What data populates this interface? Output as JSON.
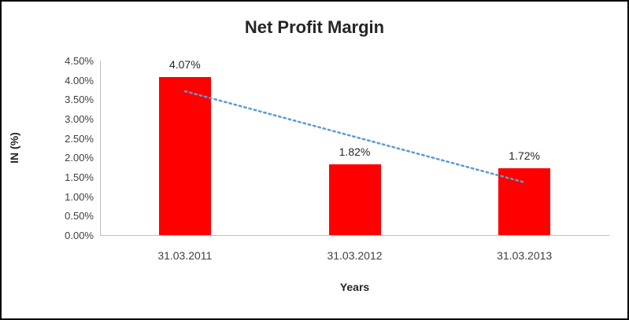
{
  "chart_data": {
    "type": "bar",
    "title": "Net Profit Margin",
    "categories": [
      "31.03.2011",
      "31.03.2012",
      "31.03.2013"
    ],
    "values": [
      4.07,
      1.82,
      1.72
    ],
    "data_labels": [
      "4.07%",
      "1.82%",
      "1.72%"
    ],
    "xlabel": "Years",
    "ylabel": "IN (%)",
    "ylim": [
      0,
      4.5
    ],
    "ytick_step": 0.5,
    "ytick_labels": [
      "0.00%",
      "0.50%",
      "1.00%",
      "1.50%",
      "2.00%",
      "2.50%",
      "3.00%",
      "3.50%",
      "4.00%",
      "4.50%"
    ],
    "bar_color": "#ff0000",
    "grid": false,
    "legend": false,
    "trendline": {
      "type": "linear",
      "style": "dotted",
      "color": "#5b9bd5",
      "start_value": 3.71,
      "end_value": 1.36
    }
  }
}
